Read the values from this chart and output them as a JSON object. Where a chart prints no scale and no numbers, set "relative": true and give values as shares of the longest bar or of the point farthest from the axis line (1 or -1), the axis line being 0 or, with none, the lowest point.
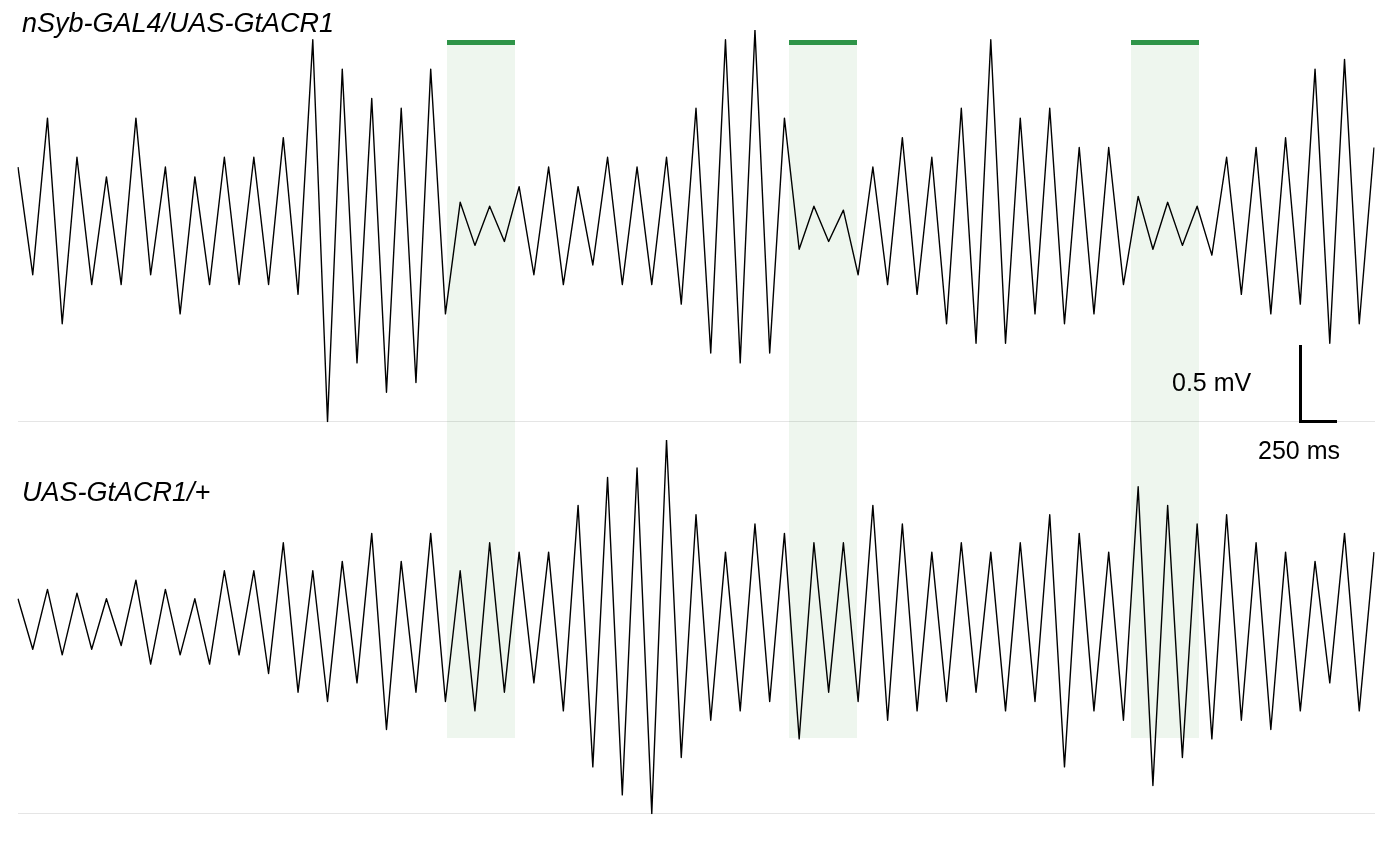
{
  "chart_data": [
    {
      "type": "line",
      "title": "nSyb-GAL4/UAS-GtACR1",
      "relative": true,
      "categories": [
        null,
        null,
        null,
        null,
        null,
        null,
        null,
        null,
        null,
        null,
        null,
        null,
        null,
        null,
        null,
        null,
        null,
        null,
        null,
        null,
        null,
        null,
        null,
        null,
        null,
        null,
        null,
        null,
        null,
        null,
        null,
        null,
        null,
        null,
        null,
        null,
        null,
        null,
        null,
        null,
        null,
        null,
        null,
        null,
        null,
        null,
        null,
        null,
        null,
        null,
        null,
        null,
        null,
        null,
        null,
        null,
        null,
        null,
        null,
        null,
        null,
        null,
        null,
        null,
        null,
        null,
        null,
        null,
        null,
        null,
        null,
        null,
        null,
        null,
        null,
        null,
        null,
        null,
        null,
        null,
        null,
        null,
        null,
        null,
        null,
        null,
        null,
        null,
        null,
        null,
        null,
        null,
        null
      ],
      "series": [
        {
          "color": "#000000",
          "values": [
            0.65,
            0.375,
            0.775,
            0.25,
            0.675,
            0.35,
            0.625,
            0.35,
            0.775,
            0.375,
            0.65,
            0.275,
            0.625,
            0.35,
            0.675,
            0.35,
            0.675,
            0.35,
            0.725,
            0.325,
            0.975,
            0,
            0.9,
            0.15,
            0.825,
            0.075,
            0.8,
            0.1,
            0.9,
            0.275,
            0.56,
            0.45,
            0.55,
            0.46,
            0.6,
            0.375,
            0.65,
            0.35,
            0.6,
            0.4,
            0.675,
            0.35,
            0.65,
            0.35,
            0.675,
            0.3,
            0.8,
            0.175,
            0.975,
            0.15,
            1,
            0.175,
            0.775,
            0.44,
            0.55,
            0.46,
            0.54,
            0.375,
            0.65,
            0.35,
            0.725,
            0.325,
            0.675,
            0.25,
            0.8,
            0.2,
            0.975,
            0.2,
            0.775,
            0.275,
            0.8,
            0.25,
            0.7,
            0.275,
            0.7,
            0.35,
            0.575,
            0.44,
            0.56,
            0.45,
            0.55,
            0.425,
            0.675,
            0.325,
            0.7,
            0.275,
            0.725,
            0.3,
            0.9,
            0.2,
            0.925,
            0.25,
            0.7
          ]
        }
      ],
      "annotations": [
        "0.5 mV",
        "250 ms"
      ]
    },
    {
      "type": "line",
      "title": "UAS-GtACR1/+",
      "relative": true,
      "categories": [
        null,
        null,
        null,
        null,
        null,
        null,
        null,
        null,
        null,
        null,
        null,
        null,
        null,
        null,
        null,
        null,
        null,
        null,
        null,
        null,
        null,
        null,
        null,
        null,
        null,
        null,
        null,
        null,
        null,
        null,
        null,
        null,
        null,
        null,
        null,
        null,
        null,
        null,
        null,
        null,
        null,
        null,
        null,
        null,
        null,
        null,
        null,
        null,
        null,
        null,
        null,
        null,
        null,
        null,
        null,
        null,
        null,
        null,
        null,
        null,
        null,
        null,
        null,
        null,
        null,
        null,
        null,
        null,
        null,
        null,
        null,
        null,
        null,
        null,
        null,
        null,
        null,
        null,
        null,
        null,
        null,
        null,
        null,
        null,
        null,
        null,
        null,
        null,
        null,
        null,
        null,
        null,
        null
      ],
      "series": [
        {
          "color": "#000000",
          "values": [
            0.575,
            0.44,
            0.6,
            0.425,
            0.59,
            0.44,
            0.575,
            0.45,
            0.625,
            0.4,
            0.6,
            0.425,
            0.575,
            0.4,
            0.65,
            0.425,
            0.65,
            0.375,
            0.725,
            0.325,
            0.65,
            0.3,
            0.675,
            0.35,
            0.75,
            0.225,
            0.675,
            0.325,
            0.75,
            0.3,
            0.65,
            0.275,
            0.725,
            0.325,
            0.7,
            0.35,
            0.7,
            0.275,
            0.825,
            0.125,
            0.9,
            0.05,
            0.925,
            0,
            1,
            0.15,
            0.8,
            0.25,
            0.7,
            0.275,
            0.775,
            0.3,
            0.75,
            0.2,
            0.725,
            0.325,
            0.725,
            0.3,
            0.825,
            0.25,
            0.775,
            0.275,
            0.7,
            0.3,
            0.725,
            0.325,
            0.7,
            0.275,
            0.725,
            0.3,
            0.8,
            0.125,
            0.75,
            0.275,
            0.7,
            0.25,
            0.875,
            0.075,
            0.825,
            0.15,
            0.775,
            0.2,
            0.8,
            0.25,
            0.725,
            0.225,
            0.7,
            0.275,
            0.675,
            0.35,
            0.75,
            0.275,
            0.7
          ]
        }
      ]
    }
  ]
}
